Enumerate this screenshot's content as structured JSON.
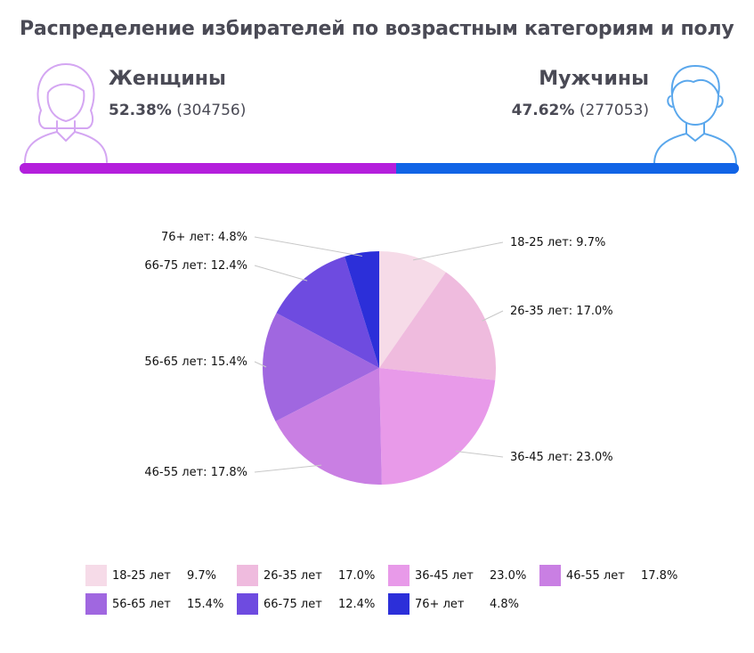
{
  "title": "Распределение избирателей по возрастным категориям и полу",
  "gender": {
    "female": {
      "label": "Женщины",
      "percent": "52.38%",
      "count": "(304756)",
      "share": 0.5238,
      "color": "#b41fdc",
      "icon": "woman-outline-icon",
      "icon_color": "#d4a6f2"
    },
    "male": {
      "label": "Мужчины",
      "percent": "47.62%",
      "count": "(277053)",
      "share": 0.4762,
      "color": "#1164e6",
      "icon": "man-outline-icon",
      "icon_color": "#5aa7ec"
    }
  },
  "chart_data": {
    "type": "pie",
    "title": "",
    "categories": [
      "18-25 лет",
      "26-35 лет",
      "36-45 лет",
      "46-55 лет",
      "56-65 лет",
      "66-75 лет",
      "76+ лет"
    ],
    "values": [
      9.7,
      17.0,
      23.0,
      17.8,
      15.4,
      12.4,
      4.8
    ],
    "colors": [
      "#f6dbe8",
      "#efbbde",
      "#e89ae9",
      "#c97fe3",
      "#a067e0",
      "#6e4be0",
      "#2c2fd9"
    ],
    "labels": [
      "18-25 лет: 9.7%",
      "26-35 лет: 17.0%",
      "36-45 лет: 23.0%",
      "46-55 лет: 17.8%",
      "56-65 лет: 15.4%",
      "66-75 лет: 12.4%",
      "76+ лет: 4.8%"
    ],
    "legend": {
      "placement": "bottom",
      "items": [
        {
          "name": "18-25 лет",
          "value": "9.7%"
        },
        {
          "name": "26-35 лет",
          "value": "17.0%"
        },
        {
          "name": "36-45 лет",
          "value": "23.0%"
        },
        {
          "name": "46-55 лет",
          "value": "17.8%"
        },
        {
          "name": "56-65 лет",
          "value": "15.4%"
        },
        {
          "name": "66-75 лет",
          "value": "12.4%"
        },
        {
          "name": "76+ лет",
          "value": "4.8%"
        }
      ]
    }
  }
}
